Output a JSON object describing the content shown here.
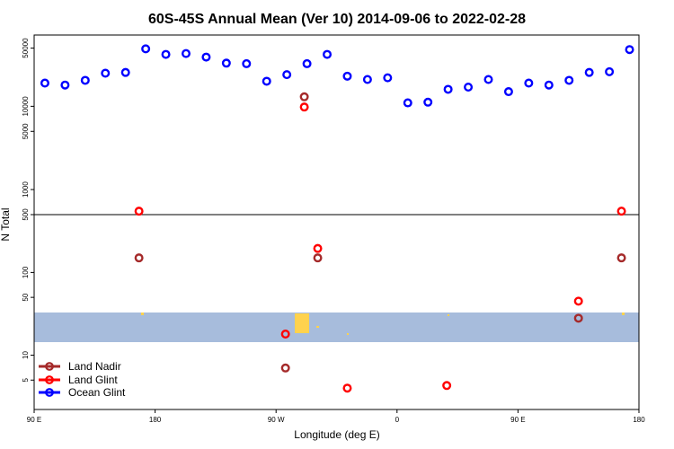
{
  "chart_data": {
    "type": "scatter",
    "title": "60S-45S Annual Mean (Ver 10)   2014-09-06 to 2022-02-28",
    "xlabel": "Longitude (deg E)",
    "ylabel": "N Total",
    "x_ticks": [
      {
        "value": 90,
        "label": "90 E"
      },
      {
        "value": 180,
        "label": "180"
      },
      {
        "value": 270,
        "label": "90 W"
      },
      {
        "value": 360,
        "label": "0"
      },
      {
        "value": 450,
        "label": "90 E"
      },
      {
        "value": 540,
        "label": "180"
      }
    ],
    "xlim": [
      90,
      540
    ],
    "upper_panel": {
      "scale": "log",
      "ylim": [
        500,
        65000
      ],
      "y_ticks": [
        500,
        1000,
        5000,
        10000,
        50000
      ]
    },
    "lower_panel": {
      "scale": "log",
      "ylim": [
        2.5,
        500
      ],
      "y_ticks": [
        5,
        10,
        50,
        100,
        500
      ]
    },
    "series": [
      {
        "name": "Land Nadir",
        "color": "#a52a2a",
        "points": [
          {
            "x": 168,
            "y": 150,
            "panel": "lower"
          },
          {
            "x": 277,
            "y": 7,
            "panel": "lower"
          },
          {
            "x": 291,
            "y": 13000,
            "panel": "upper"
          },
          {
            "x": 301,
            "y": 150,
            "panel": "lower"
          },
          {
            "x": 495,
            "y": 28,
            "panel": "lower"
          },
          {
            "x": 527,
            "y": 150,
            "panel": "lower"
          }
        ]
      },
      {
        "name": "Land Glint",
        "color": "#ff0000",
        "points": [
          {
            "x": 168,
            "y": 550,
            "panel": "lower"
          },
          {
            "x": 277,
            "y": 18,
            "panel": "lower"
          },
          {
            "x": 291,
            "y": 9800,
            "panel": "upper"
          },
          {
            "x": 301,
            "y": 195,
            "panel": "lower"
          },
          {
            "x": 323,
            "y": 4,
            "panel": "lower"
          },
          {
            "x": 397,
            "y": 4.3,
            "panel": "lower"
          },
          {
            "x": 495,
            "y": 45,
            "panel": "lower"
          },
          {
            "x": 527,
            "y": 550,
            "panel": "upper"
          }
        ]
      },
      {
        "name": "Ocean Glint",
        "color": "#0000ff",
        "points": [
          {
            "x": 98,
            "y": 19000,
            "panel": "upper"
          },
          {
            "x": 113,
            "y": 18000,
            "panel": "upper"
          },
          {
            "x": 128,
            "y": 20500,
            "panel": "upper"
          },
          {
            "x": 143,
            "y": 25000,
            "panel": "upper"
          },
          {
            "x": 158,
            "y": 25500,
            "panel": "upper"
          },
          {
            "x": 173,
            "y": 49000,
            "panel": "upper"
          },
          {
            "x": 188,
            "y": 42000,
            "panel": "upper"
          },
          {
            "x": 203,
            "y": 43000,
            "panel": "upper"
          },
          {
            "x": 218,
            "y": 39000,
            "panel": "upper"
          },
          {
            "x": 233,
            "y": 33000,
            "panel": "upper"
          },
          {
            "x": 248,
            "y": 32500,
            "panel": "upper"
          },
          {
            "x": 263,
            "y": 20000,
            "panel": "upper"
          },
          {
            "x": 278,
            "y": 24000,
            "panel": "upper"
          },
          {
            "x": 293,
            "y": 32500,
            "panel": "upper"
          },
          {
            "x": 308,
            "y": 42000,
            "panel": "upper"
          },
          {
            "x": 323,
            "y": 23000,
            "panel": "upper"
          },
          {
            "x": 338,
            "y": 21000,
            "panel": "upper"
          },
          {
            "x": 353,
            "y": 22000,
            "panel": "upper"
          },
          {
            "x": 368,
            "y": 11000,
            "panel": "upper"
          },
          {
            "x": 383,
            "y": 11200,
            "panel": "upper"
          },
          {
            "x": 398,
            "y": 16000,
            "panel": "upper"
          },
          {
            "x": 413,
            "y": 17000,
            "panel": "upper"
          },
          {
            "x": 428,
            "y": 21000,
            "panel": "upper"
          },
          {
            "x": 443,
            "y": 15000,
            "panel": "upper"
          },
          {
            "x": 458,
            "y": 19000,
            "panel": "upper"
          },
          {
            "x": 473,
            "y": 18000,
            "panel": "upper"
          },
          {
            "x": 488,
            "y": 20500,
            "panel": "upper"
          },
          {
            "x": 503,
            "y": 25500,
            "panel": "upper"
          },
          {
            "x": 518,
            "y": 26000,
            "panel": "upper"
          },
          {
            "x": 533,
            "y": 48000,
            "panel": "upper"
          }
        ]
      }
    ],
    "legend": {
      "placement": "bottom-left",
      "entries": [
        "Land Nadir",
        "Land Glint",
        "Ocean Glint"
      ]
    },
    "map_band": {
      "ocean_color": "#a7bcdc",
      "land_color": "#ffd24d"
    }
  }
}
